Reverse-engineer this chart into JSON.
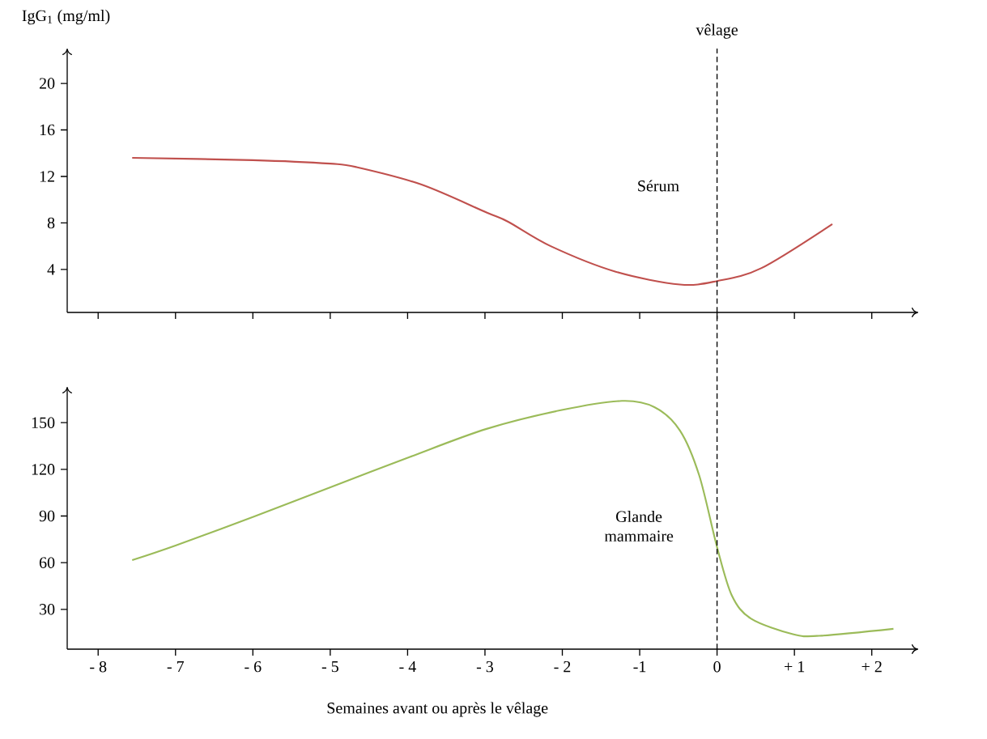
{
  "chart_data": [
    {
      "type": "line",
      "ylabel": "IgG$_{1}$ (mg/ml)",
      "xlim": [
        -8.4,
        2.6
      ],
      "ylim": [
        0.3,
        23
      ],
      "xticks": [
        {
          "value": -8,
          "label": null
        },
        {
          "value": -7,
          "label": null
        },
        {
          "value": -6,
          "label": null
        },
        {
          "value": -5,
          "label": null
        },
        {
          "value": -4,
          "label": null
        },
        {
          "value": -3,
          "label": null
        },
        {
          "value": -2,
          "label": null
        },
        {
          "value": -1,
          "label": null
        },
        {
          "value": 0,
          "label": null
        },
        {
          "value": 1,
          "label": null
        },
        {
          "value": 2,
          "label": null
        }
      ],
      "yticks": [
        4,
        8,
        12,
        16,
        20
      ],
      "tick_labels": "y",
      "ref_lines": [
        {
          "axis": "x",
          "value": 0,
          "label": "vêlage",
          "line_style": "dashed"
        }
      ],
      "annotations": [
        "Sérum"
      ],
      "series": [
        {
          "color": "#c0504d",
          "x": [
            -7.56,
            -6.0,
            -5.0,
            -4.66,
            -3.82,
            -2.98,
            -2.7,
            -2.15,
            -1.31,
            -0.48,
            0,
            0.57,
            1.49
          ],
          "values": [
            13.6,
            13.4,
            13.1,
            12.8,
            11.3,
            8.9,
            8.1,
            6.0,
            3.8,
            2.7,
            3.0,
            4.1,
            7.9
          ]
        }
      ]
    },
    {
      "type": "line",
      "xlabel": "Semaines avant ou après le vêlage",
      "xlim": [
        -8.4,
        2.6
      ],
      "ylim": [
        4.4,
        173
      ],
      "xticks": [
        {
          "value": -8,
          "label": "- 8"
        },
        {
          "value": -7,
          "label": "- 7"
        },
        {
          "value": -6,
          "label": "- 6"
        },
        {
          "value": -5,
          "label": "- 5"
        },
        {
          "value": -4,
          "label": "- 4"
        },
        {
          "value": -3,
          "label": "- 3"
        },
        {
          "value": -2,
          "label": "- 2"
        },
        -1,
        0,
        {
          "value": 1,
          "label": "+ 1"
        },
        {
          "value": 2,
          "label": "+ 2"
        }
      ],
      "yticks": [
        30,
        60,
        90,
        120,
        150
      ],
      "ref_lines": [
        {
          "axis": "x",
          "value": 0,
          "label": null,
          "line_style": "dashed"
        }
      ],
      "annotations": [
        "Glande mammaire"
      ],
      "series": [
        {
          "color": "#9bbb59",
          "x": [
            -7.56,
            -7.0,
            -5.98,
            -4.97,
            -3.97,
            -2.98,
            -2.02,
            -1.23,
            -0.81,
            -0.48,
            -0.23,
            0,
            0.19,
            0.44,
            0.98,
            1.32,
            2.28
          ],
          "values": [
            61.6,
            71,
            89.7,
            109,
            128,
            146,
            158,
            164,
            160,
            145,
            116,
            70,
            39,
            24,
            14,
            13,
            17.5
          ]
        }
      ]
    }
  ]
}
